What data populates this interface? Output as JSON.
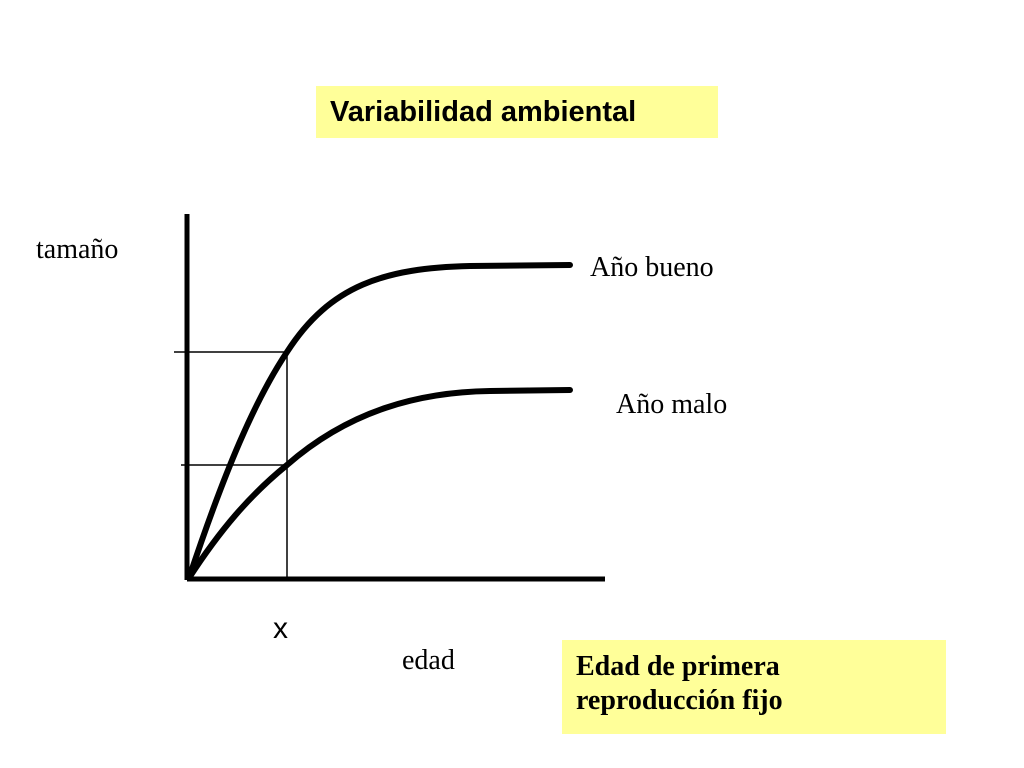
{
  "title": "Variabilidad ambiental",
  "y_axis_label": "tamaño",
  "x_axis_label": "edad",
  "x_marker_label": "x",
  "curves": [
    {
      "name": "Año bueno"
    },
    {
      "name": "Año malo"
    }
  ],
  "note": {
    "line1": "Edad de primera",
    "line2": "reproducción fijo"
  },
  "colors": {
    "box_fill": "#ffff99",
    "ink": "#000000"
  }
}
